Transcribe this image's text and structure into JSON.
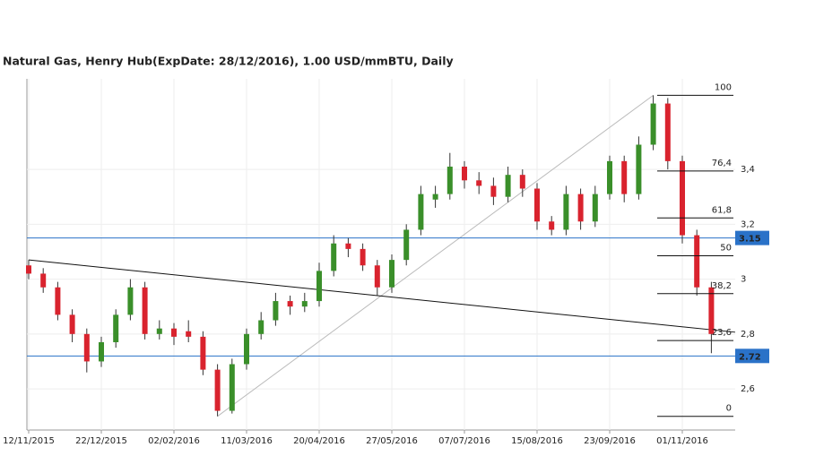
{
  "chart_data": {
    "type": "candlestick",
    "title": "Natural Gas, Henry Hub(ExpDate: 28/12/2016), 1.00 USD/mmBTU, Daily",
    "categories": [
      "12/11/2015",
      null,
      null,
      null,
      null,
      "22/12/2015",
      null,
      null,
      null,
      null,
      "02/02/2016",
      null,
      null,
      null,
      null,
      "11/03/2016",
      null,
      null,
      null,
      null,
      "20/04/2016",
      null,
      null,
      null,
      null,
      "27/05/2016",
      null,
      null,
      null,
      null,
      "07/07/2016",
      null,
      null,
      null,
      null,
      "15/08/2016",
      null,
      null,
      null,
      null,
      "23/09/2016",
      null,
      null,
      null,
      null,
      "01/11/2016",
      null,
      null
    ],
    "open": [
      3.05,
      3.02,
      2.97,
      2.87,
      2.8,
      2.7,
      2.77,
      2.87,
      2.97,
      2.8,
      2.82,
      2.81,
      2.79,
      2.67,
      2.52,
      2.69,
      2.8,
      2.85,
      2.92,
      2.9,
      2.92,
      3.03,
      3.13,
      3.11,
      3.05,
      2.97,
      3.07,
      3.18,
      3.29,
      3.31,
      3.41,
      3.36,
      3.34,
      3.3,
      3.38,
      3.33,
      3.21,
      3.18,
      3.31,
      3.21,
      3.31,
      3.43,
      3.31,
      3.49,
      3.64,
      3.43,
      3.16,
      2.97
    ],
    "high": [
      3.07,
      3.04,
      2.99,
      2.89,
      2.82,
      2.79,
      2.89,
      3.0,
      2.99,
      2.85,
      2.84,
      2.85,
      2.81,
      2.69,
      2.71,
      2.82,
      2.88,
      2.95,
      2.94,
      2.95,
      3.06,
      3.16,
      3.15,
      3.13,
      3.07,
      3.09,
      3.2,
      3.34,
      3.34,
      3.46,
      3.43,
      3.39,
      3.37,
      3.41,
      3.4,
      3.35,
      3.23,
      3.34,
      3.33,
      3.34,
      3.45,
      3.45,
      3.52,
      3.67,
      3.66,
      3.45,
      3.18,
      2.99
    ],
    "low": [
      3.0,
      2.95,
      2.85,
      2.77,
      2.66,
      2.68,
      2.75,
      2.85,
      2.78,
      2.78,
      2.76,
      2.77,
      2.65,
      2.5,
      2.51,
      2.67,
      2.78,
      2.83,
      2.87,
      2.88,
      2.9,
      3.01,
      3.08,
      3.03,
      2.94,
      2.95,
      3.05,
      3.16,
      3.26,
      3.29,
      3.33,
      3.31,
      3.27,
      3.28,
      3.3,
      3.18,
      3.16,
      3.16,
      3.18,
      3.19,
      3.29,
      3.28,
      3.29,
      3.47,
      3.4,
      3.13,
      2.94,
      2.73
    ],
    "close": [
      3.02,
      2.97,
      2.87,
      2.8,
      2.7,
      2.77,
      2.87,
      2.97,
      2.8,
      2.82,
      2.79,
      2.79,
      2.67,
      2.52,
      2.69,
      2.8,
      2.85,
      2.92,
      2.9,
      2.92,
      3.03,
      3.13,
      3.11,
      3.05,
      2.97,
      3.07,
      3.18,
      3.31,
      3.31,
      3.41,
      3.36,
      3.34,
      3.3,
      3.38,
      3.33,
      3.21,
      3.18,
      3.31,
      3.21,
      3.31,
      3.43,
      3.31,
      3.49,
      3.64,
      3.43,
      3.16,
      2.97,
      2.8
    ],
    "up_color": "#3a8f2a",
    "down_color": "#d9232e",
    "ylim": [
      2.45,
      3.73
    ],
    "yticks": [
      {
        "value": 2.6,
        "label": "2,6"
      },
      {
        "value": 2.8,
        "label": "2,8"
      },
      3,
      {
        "value": 3.2,
        "label": "3,2"
      },
      {
        "value": 3.4,
        "label": "3,4"
      }
    ],
    "price_levels": [
      3.15,
      2.72
    ],
    "level_color": "#2a72c8",
    "fibonacci_levels": [
      100,
      {
        "value": 76.4,
        "label": "76,4"
      },
      {
        "value": 61.8,
        "label": "61,8"
      },
      50,
      {
        "value": 38.2,
        "label": "38,2"
      },
      {
        "value": 23.6,
        "label": "23,6"
      },
      0
    ],
    "grid": true
  }
}
